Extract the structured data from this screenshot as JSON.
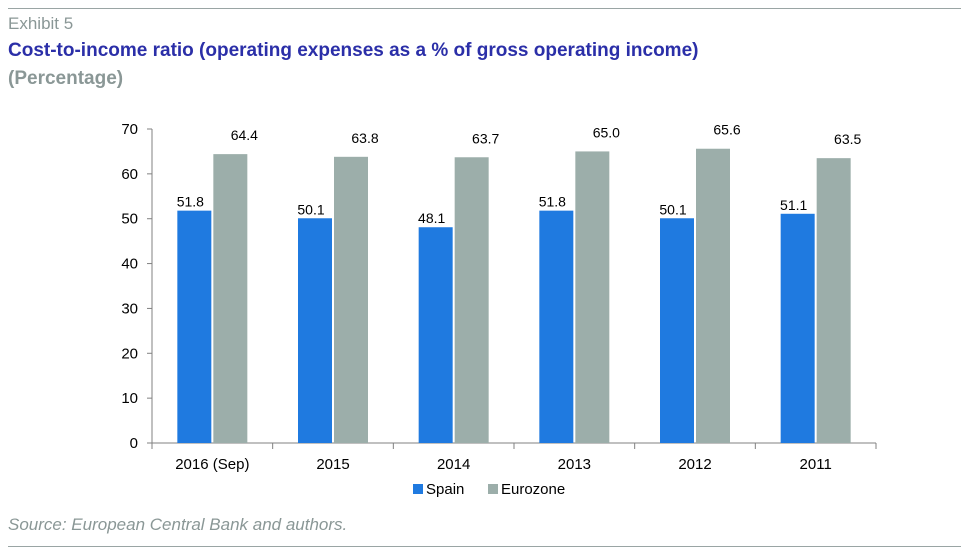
{
  "header": {
    "exhibit": "Exhibit 5",
    "title": "Cost-to-income ratio (operating expenses as a % of gross operating income)",
    "subtitle": "(Percentage)"
  },
  "footer": {
    "source": "Source: European Central Bank and authors."
  },
  "colors": {
    "spain": "#1f7ae0",
    "eurozone": "#9caeaa",
    "title": "#2b2fa8",
    "muted": "#8a9796"
  },
  "chart_data": {
    "type": "bar",
    "categories": [
      "2016 (Sep)",
      "2015",
      "2014",
      "2013",
      "2012",
      "2011"
    ],
    "series": [
      {
        "name": "Spain",
        "values": [
          51.8,
          50.1,
          48.1,
          51.8,
          50.1,
          51.1
        ],
        "labels": [
          "51.8",
          "50.1",
          "48.1",
          "51.8",
          "50.1",
          "51.1"
        ]
      },
      {
        "name": "Eurozone",
        "values": [
          64.4,
          63.8,
          63.7,
          65.0,
          65.6,
          63.5
        ],
        "labels": [
          "64.4",
          "63.8",
          "63.7",
          "65.0",
          "65.6",
          "63.5"
        ]
      }
    ],
    "ylim": [
      0,
      70
    ],
    "yticks": [
      0,
      10,
      20,
      30,
      40,
      50,
      60,
      70
    ],
    "grid": false,
    "legend_position": "bottom"
  }
}
